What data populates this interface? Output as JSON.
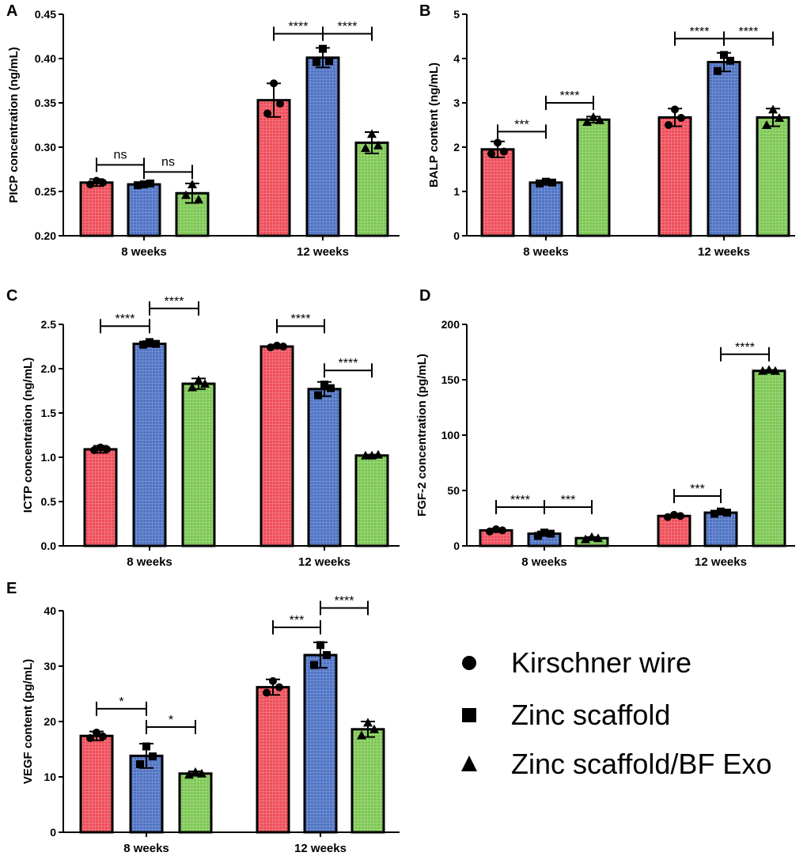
{
  "legend": [
    {
      "label": "Kirschner wire",
      "marker": "circle",
      "color": "#ee4e5a"
    },
    {
      "label": "Zinc scaffold",
      "marker": "square",
      "color": "#4f73c3"
    },
    {
      "label": "Zinc scaffold/BF Exo",
      "marker": "triangle",
      "color": "#7cc653"
    }
  ],
  "chart_data": [
    {
      "panel": "A",
      "type": "bar",
      "ylabel": "PICP concentration (ng/mL)",
      "ylim": [
        0.2,
        0.45
      ],
      "yticks": [
        "0.20",
        "0.25",
        "0.30",
        "0.35",
        "0.40",
        "0.45"
      ],
      "tick_values": [
        0.2,
        0.25,
        0.3,
        0.35,
        0.4,
        0.45
      ],
      "categories": [
        "8 weeks",
        "12 weeks"
      ],
      "series": [
        {
          "name": "Kirschner wire",
          "values": [
            0.26,
            0.353
          ],
          "errors": [
            0.004,
            0.019
          ],
          "points": [
            [
              0.262,
              0.258,
              0.26
            ],
            [
              0.372,
              0.338,
              0.349
            ]
          ]
        },
        {
          "name": "Zinc scaffold",
          "values": [
            0.258,
            0.401
          ],
          "errors": [
            0.002,
            0.011
          ],
          "points": [
            [
              0.258,
              0.257,
              0.259
            ],
            [
              0.411,
              0.396,
              0.397
            ]
          ]
        },
        {
          "name": "Zinc scaffold/BF Exo",
          "values": [
            0.248,
            0.305
          ],
          "errors": [
            0.011,
            0.012
          ],
          "points": [
            [
              0.258,
              0.246,
              0.241
            ],
            [
              0.315,
              0.299,
              0.302
            ]
          ]
        }
      ],
      "comparisons": [
        {
          "label": "ns",
          "from": [
            0,
            0
          ],
          "to": [
            0,
            1
          ],
          "y": 0.28
        },
        {
          "label": "ns",
          "from": [
            0,
            1
          ],
          "to": [
            0,
            2
          ],
          "y": 0.272
        },
        {
          "label": "****",
          "from": [
            1,
            0
          ],
          "to": [
            1,
            1
          ],
          "y": 0.428
        },
        {
          "label": "****",
          "from": [
            1,
            1
          ],
          "to": [
            1,
            2
          ],
          "y": 0.428
        }
      ]
    },
    {
      "panel": "B",
      "type": "bar",
      "ylabel": "BALP content (ng/mL)",
      "ylim": [
        0,
        5
      ],
      "yticks": [
        "0",
        "1",
        "2",
        "3",
        "4",
        "5"
      ],
      "tick_values": [
        0,
        1,
        2,
        3,
        4,
        5
      ],
      "categories": [
        "8 weeks",
        "12 weeks"
      ],
      "series": [
        {
          "name": "Kirschner wire",
          "values": [
            1.95,
            2.67
          ],
          "errors": [
            0.18,
            0.2
          ],
          "points": [
            [
              2.1,
              1.85,
              1.9
            ],
            [
              2.85,
              2.5,
              2.66
            ]
          ]
        },
        {
          "name": "Zinc scaffold",
          "values": [
            1.2,
            3.92
          ],
          "errors": [
            0.04,
            0.21
          ],
          "points": [
            [
              1.22,
              1.18,
              1.2
            ],
            [
              4.08,
              3.72,
              3.95
            ]
          ]
        },
        {
          "name": "Zinc scaffold/BF Exo",
          "values": [
            2.62,
            2.67
          ],
          "errors": [
            0.07,
            0.2
          ],
          "points": [
            [
              2.68,
              2.57,
              2.61
            ],
            [
              2.85,
              2.5,
              2.66
            ]
          ]
        }
      ],
      "comparisons": [
        {
          "label": "***",
          "from": [
            0,
            0
          ],
          "to": [
            0,
            1
          ],
          "y": 2.35
        },
        {
          "label": "****",
          "from": [
            0,
            1
          ],
          "to": [
            0,
            2
          ],
          "y": 3.0
        },
        {
          "label": "****",
          "from": [
            1,
            0
          ],
          "to": [
            1,
            1
          ],
          "y": 4.45
        },
        {
          "label": "****",
          "from": [
            1,
            1
          ],
          "to": [
            1,
            2
          ],
          "y": 4.45
        }
      ]
    },
    {
      "panel": "C",
      "type": "bar",
      "ylabel": "ICTP concentration (ng/mL)",
      "ylim": [
        0,
        2.5
      ],
      "yticks": [
        "0.0",
        "0.5",
        "1.0",
        "1.5",
        "2.0",
        "2.5"
      ],
      "tick_values": [
        0,
        0.5,
        1.0,
        1.5,
        2.0,
        2.5
      ],
      "categories": [
        "8 weeks",
        "12 weeks"
      ],
      "series": [
        {
          "name": "Kirschner wire",
          "values": [
            1.09,
            2.25
          ],
          "errors": [
            0.04,
            0.02
          ],
          "points": [
            [
              1.11,
              1.08,
              1.09
            ],
            [
              2.26,
              2.24,
              2.25
            ]
          ]
        },
        {
          "name": "Zinc scaffold",
          "values": [
            2.28,
            1.77
          ],
          "errors": [
            0.03,
            0.08
          ],
          "points": [
            [
              2.3,
              2.27,
              2.28
            ],
            [
              1.82,
              1.7,
              1.78
            ]
          ]
        },
        {
          "name": "Zinc scaffold/BF Exo",
          "values": [
            1.83,
            1.02
          ],
          "errors": [
            0.06,
            0.01
          ],
          "points": [
            [
              1.87,
              1.79,
              1.83
            ],
            [
              1.02,
              1.02,
              1.03
            ]
          ]
        }
      ],
      "comparisons": [
        {
          "label": "****",
          "from": [
            0,
            0
          ],
          "to": [
            0,
            1
          ],
          "y": 2.48
        },
        {
          "label": "****",
          "from": [
            0,
            1
          ],
          "to": [
            0,
            2
          ],
          "y": 2.68
        },
        {
          "label": "****",
          "from": [
            1,
            0
          ],
          "to": [
            1,
            1
          ],
          "y": 2.48
        },
        {
          "label": "****",
          "from": [
            1,
            1
          ],
          "to": [
            1,
            2
          ],
          "y": 1.98
        }
      ]
    },
    {
      "panel": "D",
      "type": "bar",
      "ylabel": "FGF-2 concentration (pg/mL)",
      "ylim": [
        0,
        200
      ],
      "yticks": [
        "0",
        "50",
        "100",
        "150",
        "200"
      ],
      "tick_values": [
        0,
        50,
        100,
        150,
        200
      ],
      "categories": [
        "8 weeks",
        "12 weeks"
      ],
      "series": [
        {
          "name": "Kirschner wire",
          "values": [
            14,
            27
          ],
          "errors": [
            1.5,
            1.2
          ],
          "points": [
            [
              15,
              13,
              14
            ],
            [
              28,
              26,
              27
            ]
          ]
        },
        {
          "name": "Zinc scaffold",
          "values": [
            11,
            30
          ],
          "errors": [
            2.0,
            1.2
          ],
          "points": [
            [
              12,
              9,
              11
            ],
            [
              31,
              29,
              30
            ]
          ]
        },
        {
          "name": "Zinc scaffold/BF Exo",
          "values": [
            7,
            158
          ],
          "errors": [
            1.0,
            0.8
          ],
          "points": [
            [
              8,
              6,
              7
            ],
            [
              159,
              158,
              158
            ]
          ]
        }
      ],
      "comparisons": [
        {
          "label": "****",
          "from": [
            0,
            0
          ],
          "to": [
            0,
            1
          ],
          "y": 35
        },
        {
          "label": "***",
          "from": [
            0,
            1
          ],
          "to": [
            0,
            2
          ],
          "y": 35
        },
        {
          "label": "***",
          "from": [
            1,
            0
          ],
          "to": [
            1,
            1
          ],
          "y": 45
        },
        {
          "label": "****",
          "from": [
            1,
            1
          ],
          "to": [
            1,
            2
          ],
          "y": 173
        }
      ]
    },
    {
      "panel": "E",
      "type": "bar",
      "ylabel": "VEGF content (pg/mL)",
      "ylim": [
        0,
        40
      ],
      "yticks": [
        "0",
        "10",
        "20",
        "30",
        "40"
      ],
      "tick_values": [
        0,
        10,
        20,
        30,
        40
      ],
      "categories": [
        "8 weeks",
        "12 weeks"
      ],
      "series": [
        {
          "name": "Kirschner wire",
          "values": [
            17.4,
            26.2
          ],
          "errors": [
            0.8,
            1.4
          ],
          "points": [
            [
              18.0,
              17.0,
              17.3
            ],
            [
              27.3,
              25.2,
              26.2
            ]
          ]
        },
        {
          "name": "Zinc scaffold",
          "values": [
            13.8,
            32.0
          ],
          "errors": [
            2.2,
            2.3
          ],
          "points": [
            [
              15.5,
              12.3,
              13.7
            ],
            [
              33.8,
              30.2,
              32.0
            ]
          ]
        },
        {
          "name": "Zinc scaffold/BF Exo",
          "values": [
            10.6,
            18.6
          ],
          "errors": [
            0.4,
            1.4
          ],
          "points": [
            [
              10.9,
              10.4,
              10.6
            ],
            [
              19.8,
              17.5,
              18.6
            ]
          ]
        }
      ],
      "comparisons": [
        {
          "label": "*",
          "from": [
            0,
            0
          ],
          "to": [
            0,
            1
          ],
          "y": 22.3
        },
        {
          "label": "*",
          "from": [
            0,
            1
          ],
          "to": [
            0,
            2
          ],
          "y": 19.0
        },
        {
          "label": "***",
          "from": [
            1,
            0
          ],
          "to": [
            1,
            1
          ],
          "y": 37.0
        },
        {
          "label": "****",
          "from": [
            1,
            1
          ],
          "to": [
            1,
            2
          ],
          "y": 40.5
        }
      ]
    }
  ]
}
